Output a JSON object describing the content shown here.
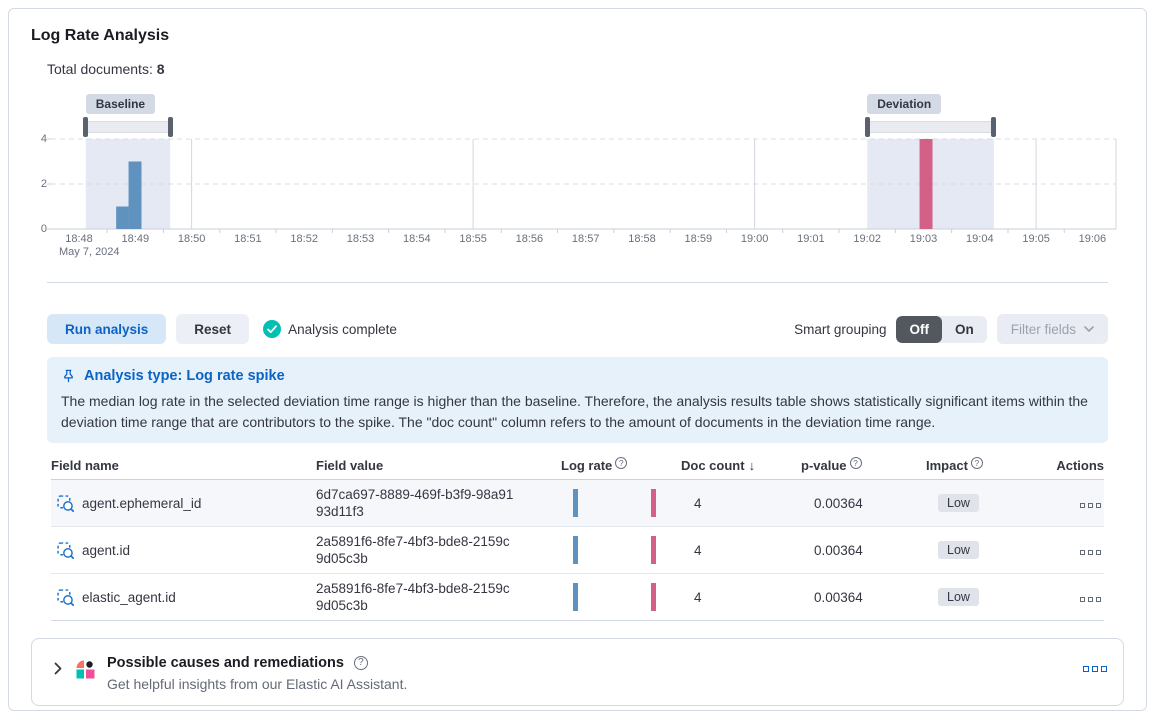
{
  "panel": {
    "title": "Log Rate Analysis",
    "total_documents_label": "Total documents:",
    "total_documents_value": "8"
  },
  "chart_data": {
    "type": "bar",
    "title": "Document count histogram with baseline and deviation brushes",
    "x_axis": {
      "date_label": "May 7, 2024",
      "tick_labels": [
        "18:48",
        "18:49",
        "18:50",
        "18:51",
        "18:52",
        "18:53",
        "18:54",
        "18:55",
        "18:56",
        "18:57",
        "18:58",
        "18:59",
        "19:00",
        "19:01",
        "19:02",
        "19:03",
        "19:04",
        "19:05",
        "19:06"
      ],
      "grid_line_minutes": [
        2,
        7,
        12,
        17
      ]
    },
    "y_axis": {
      "ticks": [
        0,
        2,
        4
      ],
      "max": 4,
      "grid_values": [
        2,
        4
      ]
    },
    "baseline": {
      "label": "Baseline",
      "window_start_min": 0.12,
      "window_end_min": 1.62,
      "color": "#6092C0",
      "bars": [
        {
          "start_min": 0.66,
          "width_min": 0.22,
          "count": 1
        },
        {
          "start_min": 0.88,
          "width_min": 0.23,
          "count": 3
        }
      ]
    },
    "deviation": {
      "label": "Deviation",
      "window_start_min": 14.0,
      "window_end_min": 16.25,
      "color": "#D36086",
      "bars": [
        {
          "start_min": 14.93,
          "width_min": 0.23,
          "count": 4
        }
      ]
    },
    "window_fill": "#E4E9F3"
  },
  "controls": {
    "run_button": "Run analysis",
    "reset_button": "Reset",
    "status": "Analysis complete",
    "smart_grouping_label": "Smart grouping",
    "toggle_off": "Off",
    "toggle_on": "On",
    "toggle_selected": "Off",
    "filter_fields": "Filter fields"
  },
  "callout": {
    "title": "Analysis type: Log rate spike",
    "body": "The median log rate in the selected deviation time range is higher than the baseline. Therefore, the analysis results table shows statistically significant items within the deviation time range that are contributors to the spike. The \"doc count\" column refers to the amount of documents in the deviation time range."
  },
  "table": {
    "headers": {
      "field_name": "Field name",
      "field_value": "Field value",
      "log_rate": "Log rate",
      "doc_count": "Doc count",
      "p_value": "p-value",
      "impact": "Impact",
      "actions": "Actions"
    },
    "sort": {
      "column": "Doc count",
      "direction": "desc",
      "arrow": "↓"
    },
    "rows": [
      {
        "field_name": "agent.ephemeral_id",
        "field_value": "6d7ca697-8889-469f-b3f9-98a9193d11f3",
        "doc_count": "4",
        "p_value": "0.00364",
        "impact": "Low"
      },
      {
        "field_name": "agent.id",
        "field_value": "2a5891f6-8fe7-4bf3-bde8-2159c9d05c3b",
        "doc_count": "4",
        "p_value": "0.00364",
        "impact": "Low"
      },
      {
        "field_name": "elastic_agent.id",
        "field_value": "2a5891f6-8fe7-4bf3-bde8-2159c9d05c3b",
        "doc_count": "4",
        "p_value": "0.00364",
        "impact": "Low"
      }
    ],
    "row_bar_colors": {
      "baseline": "#6092C0",
      "deviation": "#D36086"
    }
  },
  "insights_panel": {
    "title": "Possible causes and remediations",
    "subtitle": "Get helpful insights from our Elastic AI Assistant."
  },
  "colors": {
    "accent_blue": "#0B64C4",
    "success_teal": "#00BFB3",
    "badge_gray": "#D3DAE6",
    "callout_bg": "#E6F1FA"
  }
}
